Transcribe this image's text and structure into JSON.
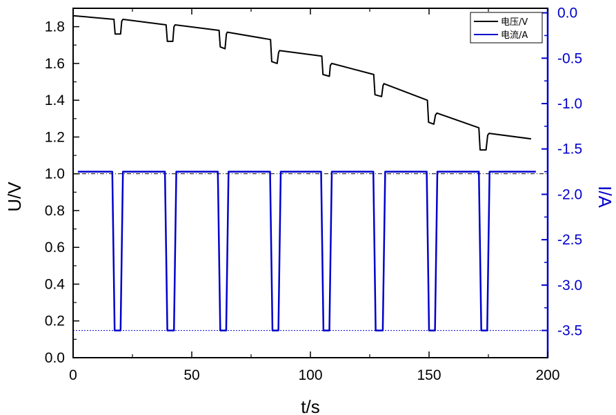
{
  "chart_data": {
    "type": "line",
    "xlabel": "t/s",
    "ylabel": "U/V",
    "y2label": "I/A",
    "xlim": [
      0,
      200
    ],
    "ylim": [
      0,
      1.9
    ],
    "y2lim": [
      -3.8,
      0.05
    ],
    "x_ticks": [
      0,
      50,
      100,
      150,
      200
    ],
    "x_tick_labels": [
      "0",
      "50",
      "100",
      "150",
      "200"
    ],
    "y_ticks": [
      0.0,
      0.2,
      0.4,
      0.6,
      0.8,
      1.0,
      1.2,
      1.4,
      1.6,
      1.8
    ],
    "y_tick_labels": [
      "0.0",
      "0.2",
      "0.4",
      "0.6",
      "0.8",
      "1.0",
      "1.2",
      "1.4",
      "1.6",
      "1.8"
    ],
    "y2_ticks": [
      0.0,
      -0.5,
      -1.0,
      -1.5,
      -2.0,
      -2.5,
      -3.0,
      -3.5
    ],
    "y2_tick_labels": [
      "0.0",
      "-0.5",
      "-1.0",
      "-1.5",
      "-2.0",
      "-2.5",
      "-3.0",
      "-3.5"
    ],
    "grid": false,
    "legend_position": "top-right",
    "reference_lines": [
      {
        "axis": "y",
        "value": 1.0,
        "color": "#000000",
        "style": "dash-dot"
      },
      {
        "axis": "y2",
        "value": -3.5,
        "color": "#0000cc",
        "style": "dotted"
      }
    ],
    "series": [
      {
        "name": "电压/V",
        "axis": "y",
        "color": "#000000",
        "x": [
          0,
          17.2,
          17.7,
          20,
          20.5,
          21,
          39.2,
          39.7,
          42,
          42.5,
          43,
          61.5,
          62,
          64,
          64.6,
          65,
          83.2,
          83.7,
          86,
          86.6,
          87,
          104.8,
          105.3,
          108,
          108.4,
          109,
          126.7,
          127.2,
          130,
          130.6,
          131,
          149.3,
          149.8,
          152,
          152.7,
          153.3,
          171,
          171.5,
          174,
          174.7,
          175.3,
          193
        ],
        "y": [
          1.86,
          1.84,
          1.76,
          1.76,
          1.83,
          1.84,
          1.81,
          1.72,
          1.72,
          1.8,
          1.81,
          1.78,
          1.69,
          1.68,
          1.76,
          1.77,
          1.73,
          1.61,
          1.6,
          1.66,
          1.67,
          1.64,
          1.54,
          1.53,
          1.59,
          1.6,
          1.54,
          1.43,
          1.42,
          1.48,
          1.49,
          1.4,
          1.28,
          1.27,
          1.32,
          1.33,
          1.25,
          1.13,
          1.13,
          1.21,
          1.22,
          1.19
        ]
      },
      {
        "name": "电流/A",
        "axis": "y2",
        "color": "#0000cc",
        "x": [
          2,
          16.5,
          17.5,
          20,
          21,
          38.7,
          39.7,
          42.5,
          43.5,
          61,
          62,
          64.5,
          65.5,
          83,
          84,
          86.5,
          87.5,
          104.5,
          105.5,
          108,
          109,
          126.5,
          127.5,
          130.5,
          131.5,
          149,
          150,
          152.5,
          153.5,
          171,
          172,
          174.5,
          175.5,
          195
        ],
        "y": [
          -1.75,
          -1.75,
          -3.5,
          -3.5,
          -1.75,
          -1.75,
          -3.5,
          -3.5,
          -1.75,
          -1.75,
          -3.5,
          -3.5,
          -1.75,
          -1.75,
          -3.5,
          -3.5,
          -1.75,
          -1.75,
          -3.5,
          -3.5,
          -1.75,
          -1.75,
          -3.5,
          -3.5,
          -1.75,
          -1.75,
          -3.5,
          -3.5,
          -1.75,
          -1.75,
          -3.5,
          -3.5,
          -1.75,
          -1.75
        ]
      }
    ]
  }
}
